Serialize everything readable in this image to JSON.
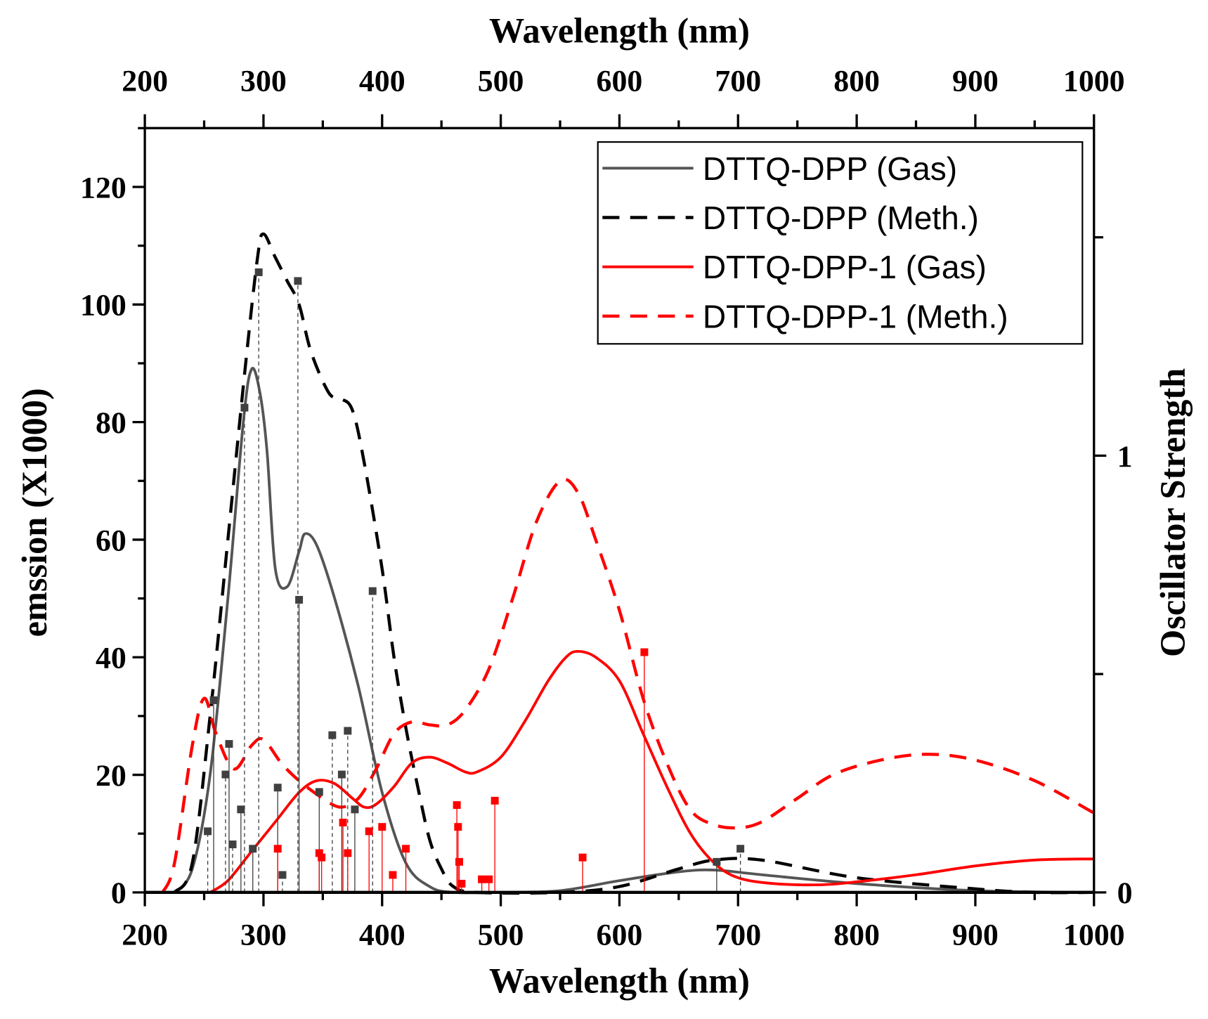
{
  "chart_data": {
    "type": "line",
    "x_axis": {
      "label": "Wavelength (nm)",
      "range": [
        200,
        1000
      ],
      "ticks": [
        200,
        300,
        400,
        500,
        600,
        700,
        800,
        900,
        1000
      ]
    },
    "x_axis_top": {
      "label": "Wavelength (nm)",
      "range": [
        200,
        1000
      ],
      "ticks": [
        200,
        300,
        400,
        500,
        600,
        700,
        800,
        900,
        1000
      ]
    },
    "y_axis_left": {
      "label": "emssion (X1000)",
      "range": [
        0,
        130
      ],
      "ticks": [
        0,
        20,
        40,
        60,
        80,
        100,
        120
      ]
    },
    "y_axis_right": {
      "label": "Oscillator Strength",
      "range": [
        0,
        1.75
      ],
      "ticks": [
        0,
        1
      ],
      "minor_ticks": [
        0.5,
        1.5
      ]
    },
    "legend_position": "top-right",
    "series": [
      {
        "name": "DTTQ-DPP (Gas)",
        "color": "#555555",
        "style": "solid",
        "x": [
          225,
          240,
          255,
          270,
          283,
          290,
          297,
          303,
          310,
          320,
          330,
          335,
          345,
          360,
          380,
          400,
          420,
          440,
          460,
          500,
          550,
          600,
          650,
          680,
          720,
          800,
          900,
          1000
        ],
        "y": [
          0,
          4,
          20,
          50,
          80,
          89,
          85,
          75,
          55,
          52,
          58,
          61,
          59,
          50,
          35,
          17,
          5,
          1,
          0,
          0,
          0.3,
          2,
          3.5,
          3.8,
          3,
          1.5,
          0.3,
          0
        ]
      },
      {
        "name": "DTTQ-DPP (Meth.)",
        "color": "#000000",
        "style": "dashed",
        "x": [
          225,
          240,
          255,
          270,
          285,
          295,
          300,
          310,
          320,
          330,
          340,
          355,
          365,
          375,
          385,
          400,
          410,
          420,
          430,
          440,
          450,
          460,
          480,
          550,
          600,
          650,
          680,
          720,
          800,
          900,
          950,
          1000
        ],
        "y": [
          0,
          5,
          30,
          60,
          90,
          108,
          112,
          108,
          104,
          100,
          92,
          85,
          84,
          82,
          73,
          55,
          40,
          28,
          18,
          9,
          4,
          1,
          0,
          0,
          1,
          4,
          5.5,
          5.5,
          2.5,
          0.6,
          0,
          0
        ]
      },
      {
        "name": "DTTQ-DPP-1 (Gas)",
        "color": "#ff0000",
        "style": "solid",
        "x": [
          255,
          270,
          290,
          310,
          330,
          345,
          360,
          375,
          385,
          395,
          410,
          425,
          440,
          455,
          470,
          480,
          500,
          520,
          540,
          555,
          565,
          580,
          600,
          620,
          640,
          660,
          680,
          700,
          730,
          770,
          800,
          850,
          900,
          950,
          1000
        ],
        "y": [
          0,
          2,
          7,
          12,
          17,
          19,
          18.5,
          16,
          14.5,
          15,
          18,
          22,
          23,
          22,
          20.5,
          20.5,
          23,
          29,
          36,
          40,
          41,
          40,
          36,
          27,
          18,
          10,
          5,
          2.5,
          1.5,
          1.3,
          1.8,
          3,
          4.5,
          5.5,
          5.7
        ]
      },
      {
        "name": "DTTQ-DPP-1 (Meth.)",
        "color": "#ff0000",
        "style": "dashed",
        "x": [
          215,
          225,
          240,
          250,
          260,
          275,
          290,
          300,
          315,
          330,
          350,
          365,
          380,
          395,
          410,
          425,
          440,
          455,
          470,
          490,
          510,
          530,
          550,
          565,
          580,
          600,
          620,
          640,
          660,
          680,
          700,
          720,
          750,
          780,
          820,
          860,
          900,
          950,
          1000
        ],
        "y": [
          0,
          5,
          25,
          33,
          27,
          21,
          25,
          26,
          22,
          19,
          16,
          14.5,
          16,
          21,
          27,
          29,
          28.5,
          28.5,
          31,
          38,
          50,
          63,
          70,
          68,
          60,
          48,
          33,
          22,
          14,
          11.5,
          11,
          12,
          16,
          20,
          22.5,
          23.5,
          22.5,
          19,
          13.5
        ]
      }
    ],
    "oscillator_sticks": [
      {
        "name": "DTTQ-DPP",
        "color": "#404040",
        "x": [
          253,
          258,
          268,
          271,
          274,
          281,
          284,
          291,
          296,
          312,
          316,
          330,
          329,
          347,
          358,
          366,
          371,
          377,
          392,
          682,
          702
        ],
        "f": [
          0.14,
          0.44,
          0.27,
          0.34,
          0.11,
          0.19,
          1.11,
          0.1,
          1.42,
          0.24,
          0.04,
          0.67,
          1.4,
          0.23,
          0.36,
          0.27,
          0.37,
          0.19,
          0.69,
          0.07,
          0.1
        ]
      },
      {
        "name": "DTTQ-DPP-1",
        "color": "#ff0000",
        "x": [
          312,
          347,
          349,
          367,
          371,
          389,
          400,
          409,
          420,
          463,
          464,
          465,
          467,
          484,
          490,
          495,
          569,
          621
        ],
        "f": [
          0.1,
          0.09,
          0.08,
          0.16,
          0.09,
          0.14,
          0.15,
          0.04,
          0.1,
          0.2,
          0.15,
          0.07,
          0.02,
          0.03,
          0.03,
          0.21,
          0.08,
          0.55
        ]
      }
    ]
  }
}
